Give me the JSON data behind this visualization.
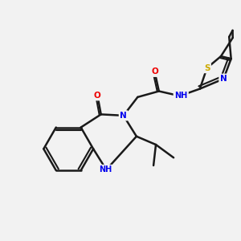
{
  "bg_color": "#f2f2f2",
  "bond_color": "#1a1a1a",
  "bond_width": 1.8,
  "atom_colors": {
    "N": "#0000ee",
    "O": "#ee0000",
    "S": "#ccaa00",
    "NH": "#0000ee",
    "C": "#1a1a1a"
  },
  "font_size": 7.5,
  "figsize": [
    3.0,
    3.0
  ],
  "dpi": 100
}
